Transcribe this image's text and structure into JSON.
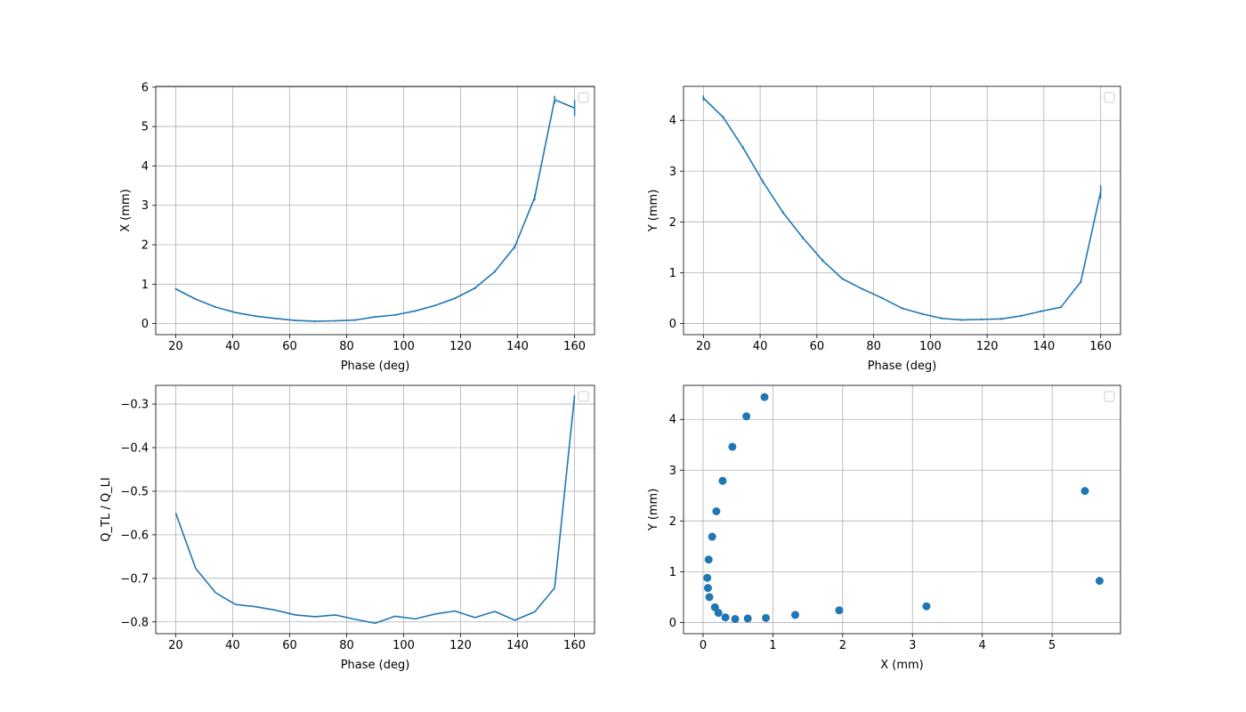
{
  "chart_data": [
    {
      "type": "line",
      "xlabel": "Phase (deg)",
      "ylabel": "X (mm)",
      "xlim": [
        13,
        167
      ],
      "ylim": [
        -0.28,
        6.02
      ],
      "xticks": [
        20,
        40,
        60,
        80,
        100,
        120,
        140,
        160
      ],
      "yticks": [
        0,
        1,
        2,
        3,
        4,
        5,
        6
      ],
      "grid": true,
      "legend": "upper right (empty)",
      "color": "#1f77b4",
      "x": [
        20,
        27,
        34,
        41,
        48,
        55,
        62,
        69,
        76,
        83,
        90,
        97,
        104,
        111,
        118,
        125,
        132,
        139,
        146,
        153,
        160
      ],
      "values": [
        0.88,
        0.62,
        0.42,
        0.28,
        0.19,
        0.13,
        0.08,
        0.06,
        0.07,
        0.09,
        0.17,
        0.22,
        0.32,
        0.46,
        0.64,
        0.9,
        1.32,
        1.95,
        3.2,
        5.68,
        5.47
      ],
      "error": [
        0.02,
        0.02,
        0.02,
        0.02,
        0.02,
        0.02,
        0.02,
        0.02,
        0.02,
        0.02,
        0.02,
        0.02,
        0.02,
        0.02,
        0.02,
        0.03,
        0.03,
        0.05,
        0.08,
        0.1,
        0.2
      ]
    },
    {
      "type": "line",
      "xlabel": "Phase (deg)",
      "ylabel": "Y (mm)",
      "xlim": [
        13,
        167
      ],
      "ylim": [
        -0.22,
        4.67
      ],
      "xticks": [
        20,
        40,
        60,
        80,
        100,
        120,
        140,
        160
      ],
      "yticks": [
        0,
        1,
        2,
        3,
        4
      ],
      "grid": true,
      "legend": "upper right (empty)",
      "color": "#1f77b4",
      "x": [
        20,
        27,
        34,
        41,
        48,
        55,
        62,
        69,
        76,
        83,
        90,
        97,
        104,
        111,
        118,
        125,
        132,
        139,
        146,
        153,
        160
      ],
      "values": [
        4.44,
        4.06,
        3.46,
        2.79,
        2.19,
        1.69,
        1.24,
        0.88,
        0.68,
        0.5,
        0.3,
        0.19,
        0.1,
        0.07,
        0.08,
        0.09,
        0.15,
        0.24,
        0.32,
        0.82,
        2.59
      ],
      "error": [
        0.05,
        0.03,
        0.03,
        0.03,
        0.03,
        0.03,
        0.03,
        0.02,
        0.02,
        0.02,
        0.02,
        0.02,
        0.02,
        0.02,
        0.02,
        0.02,
        0.02,
        0.02,
        0.02,
        0.03,
        0.13
      ]
    },
    {
      "type": "line",
      "xlabel": "Phase (deg)",
      "ylabel": "Q_TL / Q_LI",
      "xlim": [
        13,
        167
      ],
      "ylim": [
        -0.827,
        -0.257
      ],
      "xticks": [
        20,
        40,
        60,
        80,
        100,
        120,
        140,
        160
      ],
      "yticks": [
        -0.3,
        -0.4,
        -0.5,
        -0.6,
        -0.7,
        -0.8
      ],
      "grid": true,
      "legend": "upper right (empty)",
      "color": "#1f77b4",
      "x": [
        20,
        27,
        34,
        41,
        48,
        55,
        62,
        69,
        76,
        83,
        90,
        97,
        104,
        111,
        118,
        125,
        132,
        139,
        146,
        153,
        160
      ],
      "values": [
        -0.55,
        -0.677,
        -0.733,
        -0.76,
        -0.765,
        -0.773,
        -0.784,
        -0.788,
        -0.784,
        -0.794,
        -0.803,
        -0.787,
        -0.793,
        -0.782,
        -0.775,
        -0.79,
        -0.776,
        -0.796,
        -0.777,
        -0.722,
        -0.28
      ]
    },
    {
      "type": "scatter",
      "xlabel": "X (mm)",
      "ylabel": "Y (mm)",
      "xlim": [
        -0.28,
        5.98
      ],
      "ylim": [
        -0.22,
        4.67
      ],
      "xticks": [
        0,
        1,
        2,
        3,
        4,
        5
      ],
      "yticks": [
        0,
        1,
        2,
        3,
        4
      ],
      "grid": true,
      "legend": "upper right (empty)",
      "color": "#1f77b4",
      "x": [
        0.88,
        0.62,
        0.42,
        0.28,
        0.19,
        0.13,
        0.08,
        0.06,
        0.07,
        0.09,
        0.17,
        0.22,
        0.32,
        0.46,
        0.64,
        0.9,
        1.32,
        1.95,
        3.2,
        5.68,
        5.47
      ],
      "values": [
        4.44,
        4.06,
        3.46,
        2.79,
        2.19,
        1.69,
        1.24,
        0.88,
        0.68,
        0.5,
        0.3,
        0.19,
        0.1,
        0.07,
        0.08,
        0.09,
        0.15,
        0.24,
        0.32,
        0.82,
        2.59
      ]
    }
  ]
}
